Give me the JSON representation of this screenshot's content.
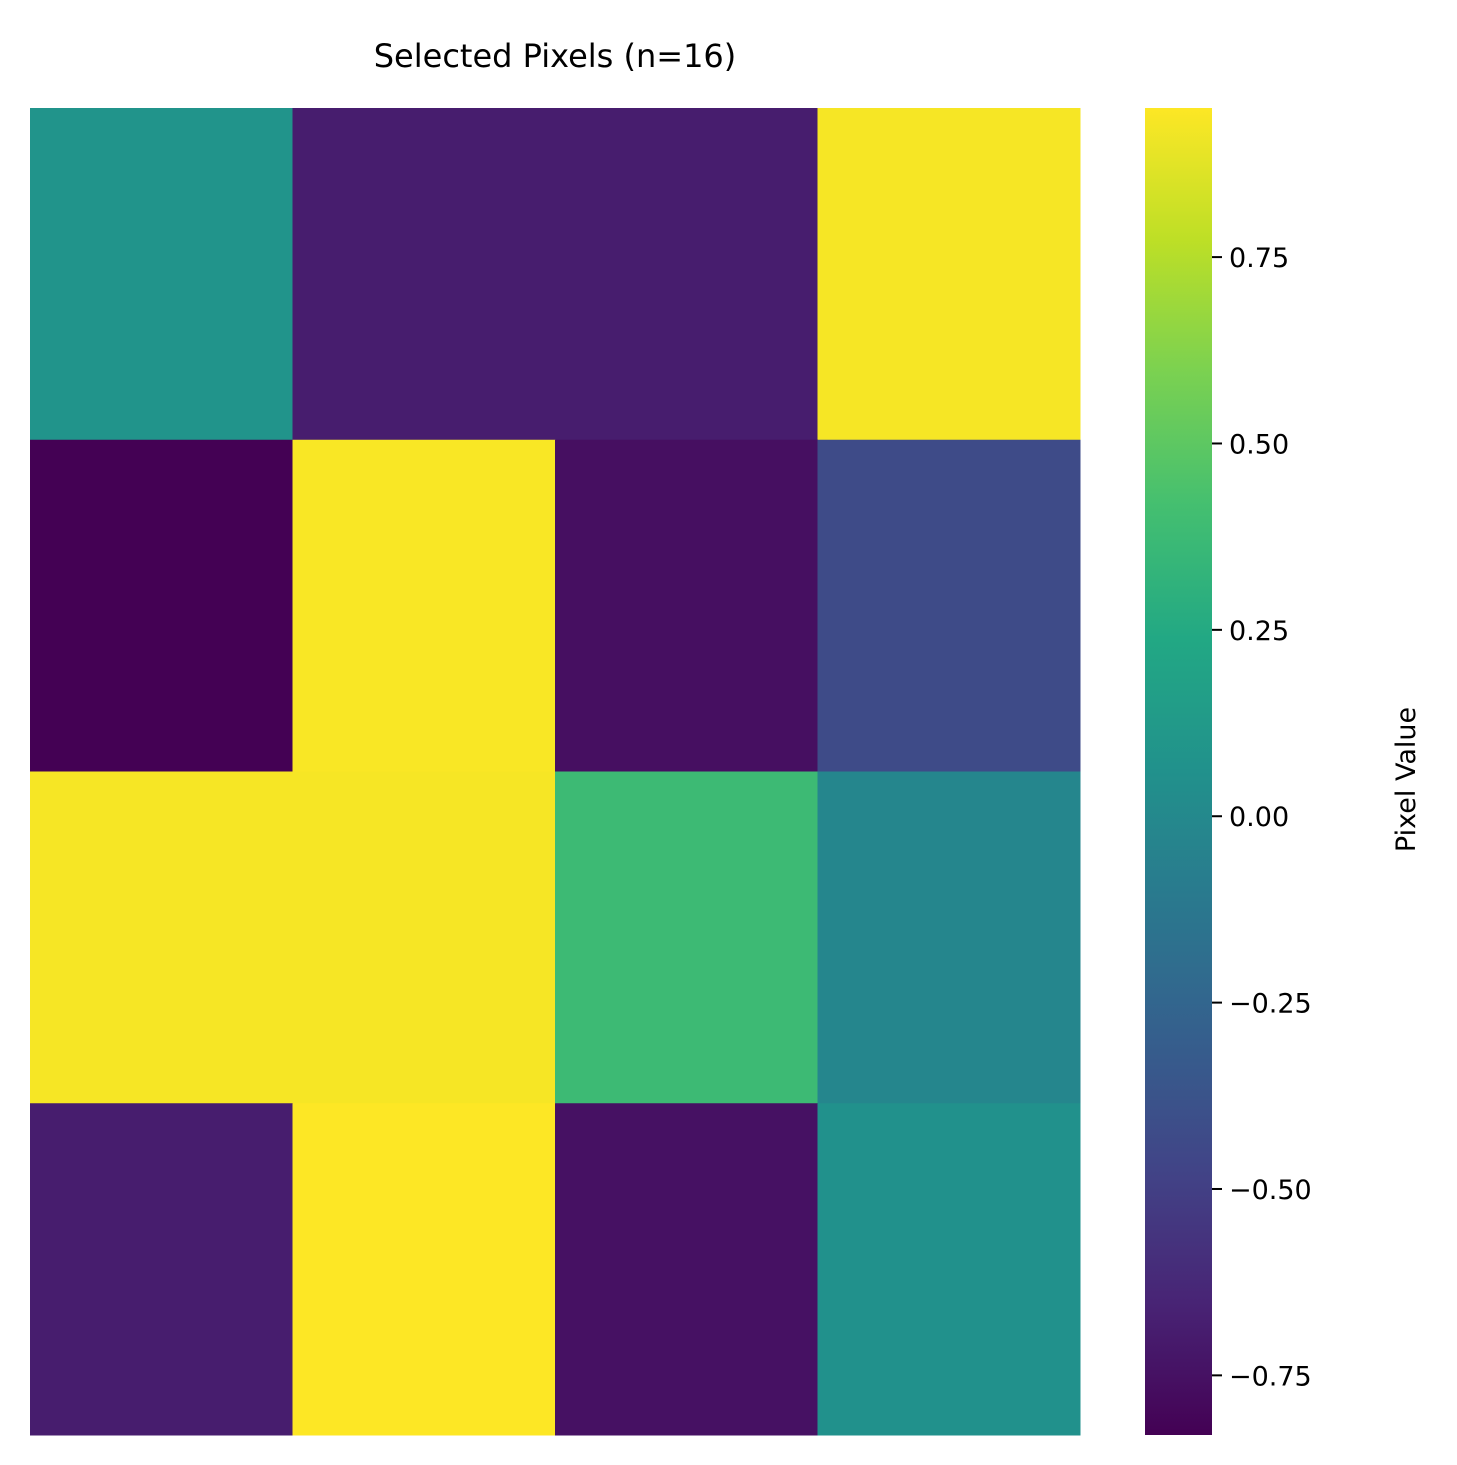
{
  "chart_data": {
    "type": "heatmap",
    "title": "Selected Pixels (n=16)",
    "rows": 4,
    "cols": 4,
    "values": [
      [
        0.08,
        -0.69,
        -0.69,
        0.93
      ],
      [
        -0.83,
        0.94,
        -0.76,
        -0.43
      ],
      [
        0.93,
        0.93,
        0.38,
        -0.02
      ],
      [
        -0.69,
        0.95,
        -0.75,
        0.06
      ]
    ],
    "colormap": "viridis",
    "vmin": -0.83,
    "vmax": 0.95,
    "colorbar": {
      "label": "Pixel Value",
      "ticks": [
        0.75,
        0.5,
        0.25,
        0.0,
        -0.25,
        -0.5,
        -0.75
      ],
      "tick_labels": [
        "0.75",
        "0.50",
        "0.25",
        "0.00",
        "−0.25",
        "−0.50",
        "−0.75"
      ]
    },
    "xlabel": "",
    "ylabel": "",
    "grid": false,
    "axis_ticks_visible": false
  }
}
